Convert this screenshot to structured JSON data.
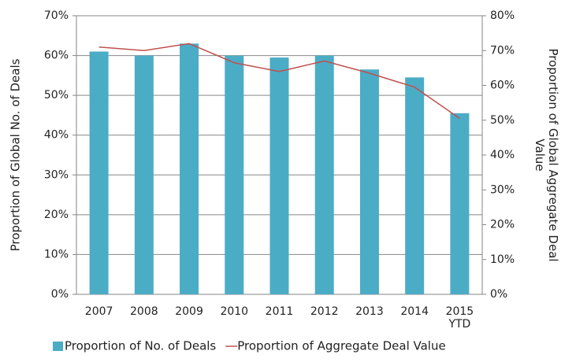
{
  "chart_data": {
    "type": "bar_line",
    "categories": [
      "2007",
      "2008",
      "2009",
      "2010",
      "2011",
      "2012",
      "2013",
      "2014",
      "2015\nYTD"
    ],
    "series": [
      {
        "name": "Proportion of No. of Deals",
        "color": "#4bacc6",
        "type": "bar",
        "values": [
          61,
          60,
          63,
          60,
          59.5,
          60,
          56.5,
          54.5,
          45.5
        ]
      },
      {
        "name": "Proportion of Aggregate Deal Value",
        "color": "#c0504d",
        "type": "line",
        "axis": "y2",
        "values": [
          71,
          70,
          72,
          66.5,
          64,
          67,
          63.5,
          59.5,
          50.5
        ]
      }
    ],
    "ylabel": "Proportion of Global No. of Deals",
    "y2label": "Proportion of Global  Aggregate Deal\nValue",
    "ylim": [
      0,
      70
    ],
    "yticks": [
      {
        "value": 0,
        "label": "0%"
      },
      {
        "value": 10,
        "label": "10%"
      },
      {
        "value": 20,
        "label": "20%"
      },
      {
        "value": 30,
        "label": "30%"
      },
      {
        "value": 40,
        "label": "40%"
      },
      {
        "value": 50,
        "label": "50%"
      },
      {
        "value": 60,
        "label": "60%"
      },
      {
        "value": 70,
        "label": "70%"
      }
    ],
    "y2lim": [
      0,
      80
    ],
    "y2ticks": [
      {
        "value": 0,
        "label": "0%"
      },
      {
        "value": 10,
        "label": "10%"
      },
      {
        "value": 20,
        "label": "20%"
      },
      {
        "value": 30,
        "label": "30%"
      },
      {
        "value": 40,
        "label": "40%"
      },
      {
        "value": 50,
        "label": "50%"
      },
      {
        "value": 60,
        "label": "60%"
      },
      {
        "value": 70,
        "label": "70%"
      },
      {
        "value": 80,
        "label": "80%"
      }
    ],
    "grid": true,
    "legend": "bottom"
  }
}
